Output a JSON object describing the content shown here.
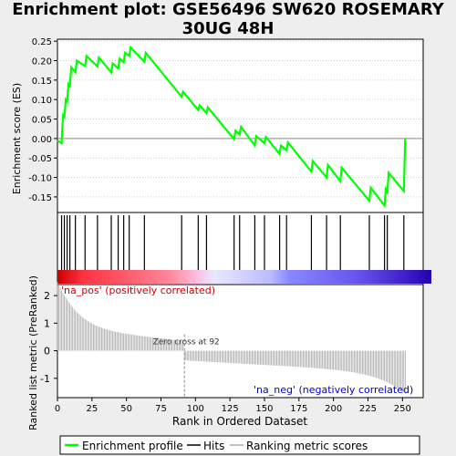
{
  "title_line1": "Enrichment plot: GSE56496 SW620 ROSEMARY",
  "title_line2": "30UG 48H",
  "chart_data": {
    "type": "line",
    "es_panel": {
      "ylabel": "Enrichment score (ES)",
      "ylim": [
        -0.19,
        0.255
      ],
      "yticks": [
        0.25,
        0.2,
        0.15,
        0.1,
        0.05,
        0.0,
        -0.05,
        -0.1,
        -0.15
      ],
      "ytick_labels": [
        "0.25",
        "0.20",
        "0.15",
        "0.10",
        "0.05",
        "0.00",
        "-0.05",
        "-0.10",
        "-0.15"
      ],
      "color": "#00ff00",
      "series": [
        {
          "x": 0,
          "y": -0.005
        },
        {
          "x": 3,
          "y": -0.012
        },
        {
          "x": 4,
          "y": 0.06
        },
        {
          "x": 5,
          "y": 0.055
        },
        {
          "x": 6,
          "y": 0.1
        },
        {
          "x": 7,
          "y": 0.095
        },
        {
          "x": 8,
          "y": 0.14
        },
        {
          "x": 9,
          "y": 0.135
        },
        {
          "x": 10,
          "y": 0.183
        },
        {
          "x": 13,
          "y": 0.17
        },
        {
          "x": 14,
          "y": 0.2
        },
        {
          "x": 20,
          "y": 0.186
        },
        {
          "x": 21,
          "y": 0.212
        },
        {
          "x": 29,
          "y": 0.185
        },
        {
          "x": 30,
          "y": 0.208
        },
        {
          "x": 39,
          "y": 0.17
        },
        {
          "x": 40,
          "y": 0.193
        },
        {
          "x": 44,
          "y": 0.18
        },
        {
          "x": 45,
          "y": 0.205
        },
        {
          "x": 48,
          "y": 0.196
        },
        {
          "x": 49,
          "y": 0.22
        },
        {
          "x": 52,
          "y": 0.212
        },
        {
          "x": 53,
          "y": 0.234
        },
        {
          "x": 63,
          "y": 0.197
        },
        {
          "x": 64,
          "y": 0.22
        },
        {
          "x": 90,
          "y": 0.107
        },
        {
          "x": 91,
          "y": 0.12
        },
        {
          "x": 102,
          "y": 0.073
        },
        {
          "x": 103,
          "y": 0.085
        },
        {
          "x": 108,
          "y": 0.065
        },
        {
          "x": 109,
          "y": 0.08
        },
        {
          "x": 128,
          "y": -0.002
        },
        {
          "x": 129,
          "y": 0.02
        },
        {
          "x": 132,
          "y": 0.01
        },
        {
          "x": 133,
          "y": 0.03
        },
        {
          "x": 143,
          "y": -0.018
        },
        {
          "x": 144,
          "y": 0.006
        },
        {
          "x": 150,
          "y": -0.012
        },
        {
          "x": 151,
          "y": 0.004
        },
        {
          "x": 161,
          "y": -0.04
        },
        {
          "x": 162,
          "y": -0.018
        },
        {
          "x": 166,
          "y": -0.03
        },
        {
          "x": 167,
          "y": -0.01
        },
        {
          "x": 184,
          "y": -0.085
        },
        {
          "x": 185,
          "y": -0.058
        },
        {
          "x": 195,
          "y": -0.1
        },
        {
          "x": 196,
          "y": -0.068
        },
        {
          "x": 205,
          "y": -0.11
        },
        {
          "x": 206,
          "y": -0.075
        },
        {
          "x": 226,
          "y": -0.16
        },
        {
          "x": 227,
          "y": -0.126
        },
        {
          "x": 237,
          "y": -0.172
        },
        {
          "x": 238,
          "y": -0.13
        },
        {
          "x": 239,
          "y": -0.138
        },
        {
          "x": 240,
          "y": -0.088
        },
        {
          "x": 251,
          "y": -0.135
        },
        {
          "x": 252,
          "y": 0.0
        }
      ]
    },
    "hits": [
      3,
      5,
      7,
      9,
      13,
      20,
      29,
      39,
      44,
      48,
      52,
      63,
      90,
      102,
      108,
      128,
      132,
      143,
      150,
      161,
      166,
      184,
      195,
      205,
      226,
      237,
      239,
      251
    ],
    "metric_panel": {
      "ylabel": "Ranked list metric (PreRanked)",
      "xlabel": "Rank in Ordered Dataset",
      "xlim": [
        0,
        265
      ],
      "ylim": [
        -1.7,
        2.4
      ],
      "xticks": [
        0,
        25,
        50,
        75,
        100,
        125,
        150,
        175,
        200,
        225,
        250
      ],
      "yticks": [
        2,
        1,
        0,
        -1
      ],
      "zero_cross_label": "Zero cross at 92",
      "zero_cross": 92,
      "pos_label": "'na_pos' (positively correlated)",
      "neg_label": "'na_neg' (negatively correlated)",
      "bar_color": "#aaaaaa"
    },
    "legend": {
      "placement": "bottom",
      "entries": [
        "Enrichment profile",
        "Hits",
        "Ranking metric scores"
      ]
    }
  }
}
